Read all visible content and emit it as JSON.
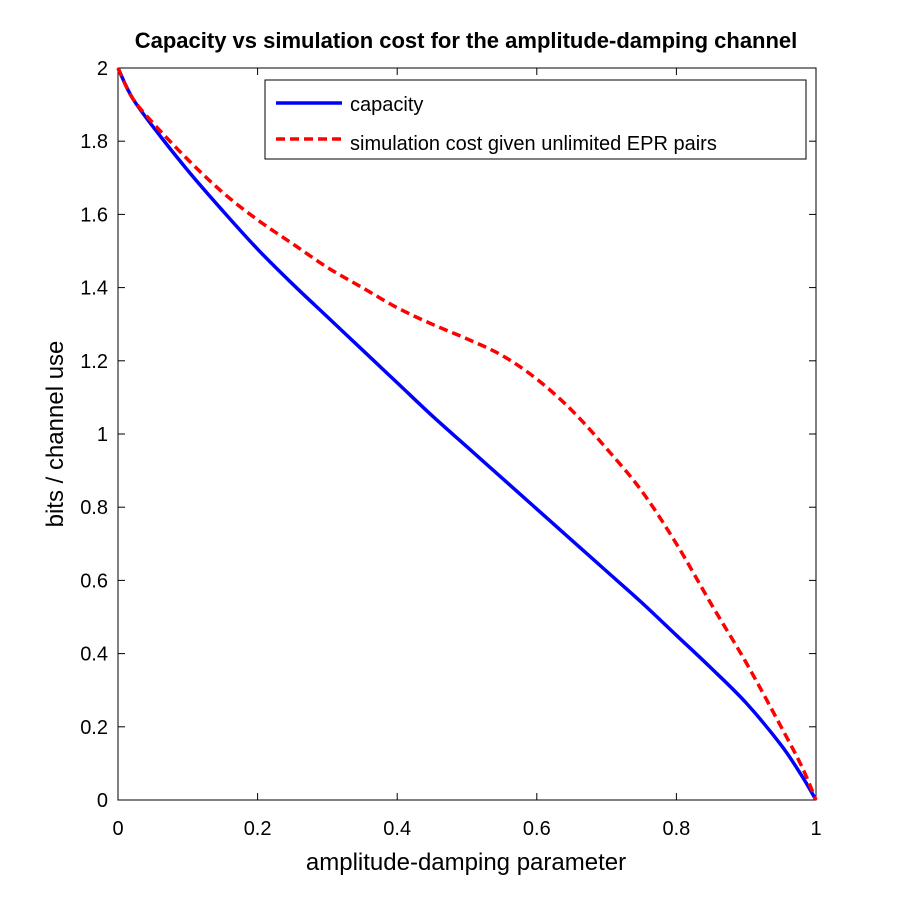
{
  "chart_data": {
    "type": "line",
    "title": "Capacity vs simulation cost for the amplitude-damping channel",
    "xlabel": "amplitude-damping parameter",
    "ylabel": "bits / channel use",
    "xlim": [
      0,
      1
    ],
    "ylim": [
      0,
      2
    ],
    "xticks": [
      0,
      0.2,
      0.4,
      0.6,
      0.8,
      1
    ],
    "xtick_labels": [
      "0",
      "0.2",
      "0.4",
      "0.6",
      "0.8",
      "1"
    ],
    "yticks": [
      0,
      0.2,
      0.4,
      0.6,
      0.8,
      1,
      1.2,
      1.4,
      1.6,
      1.8,
      2
    ],
    "ytick_labels": [
      "0",
      "0.2",
      "0.4",
      "0.6",
      "0.8",
      "1",
      "1.2",
      "1.4",
      "1.6",
      "1.8",
      "2"
    ],
    "grid": false,
    "legend_position": "top-right",
    "series": [
      {
        "name": "capacity",
        "color": "#0000ff",
        "style": "solid",
        "x": [
          0,
          0.02,
          0.05,
          0.1,
          0.15,
          0.2,
          0.25,
          0.3,
          0.35,
          0.4,
          0.45,
          0.5,
          0.55,
          0.6,
          0.65,
          0.7,
          0.75,
          0.8,
          0.85,
          0.9,
          0.95,
          0.98,
          1
        ],
        "y": [
          2.0,
          1.92,
          1.84,
          1.72,
          1.61,
          1.505,
          1.41,
          1.32,
          1.23,
          1.14,
          1.05,
          0.965,
          0.88,
          0.795,
          0.71,
          0.625,
          0.54,
          0.45,
          0.36,
          0.265,
          0.15,
          0.065,
          0.0
        ]
      },
      {
        "name": "simulation cost given unlimited EPR pairs",
        "color": "#ff0000",
        "style": "dashed",
        "x": [
          0,
          0.02,
          0.05,
          0.1,
          0.15,
          0.2,
          0.25,
          0.3,
          0.35,
          0.4,
          0.45,
          0.5,
          0.55,
          0.6,
          0.65,
          0.7,
          0.75,
          0.8,
          0.85,
          0.9,
          0.95,
          0.98,
          1
        ],
        "y": [
          2.0,
          1.92,
          1.85,
          1.75,
          1.66,
          1.585,
          1.52,
          1.455,
          1.4,
          1.345,
          1.3,
          1.26,
          1.215,
          1.15,
          1.065,
          0.96,
          0.845,
          0.7,
          0.535,
          0.375,
          0.2,
          0.09,
          0.0
        ]
      }
    ]
  }
}
